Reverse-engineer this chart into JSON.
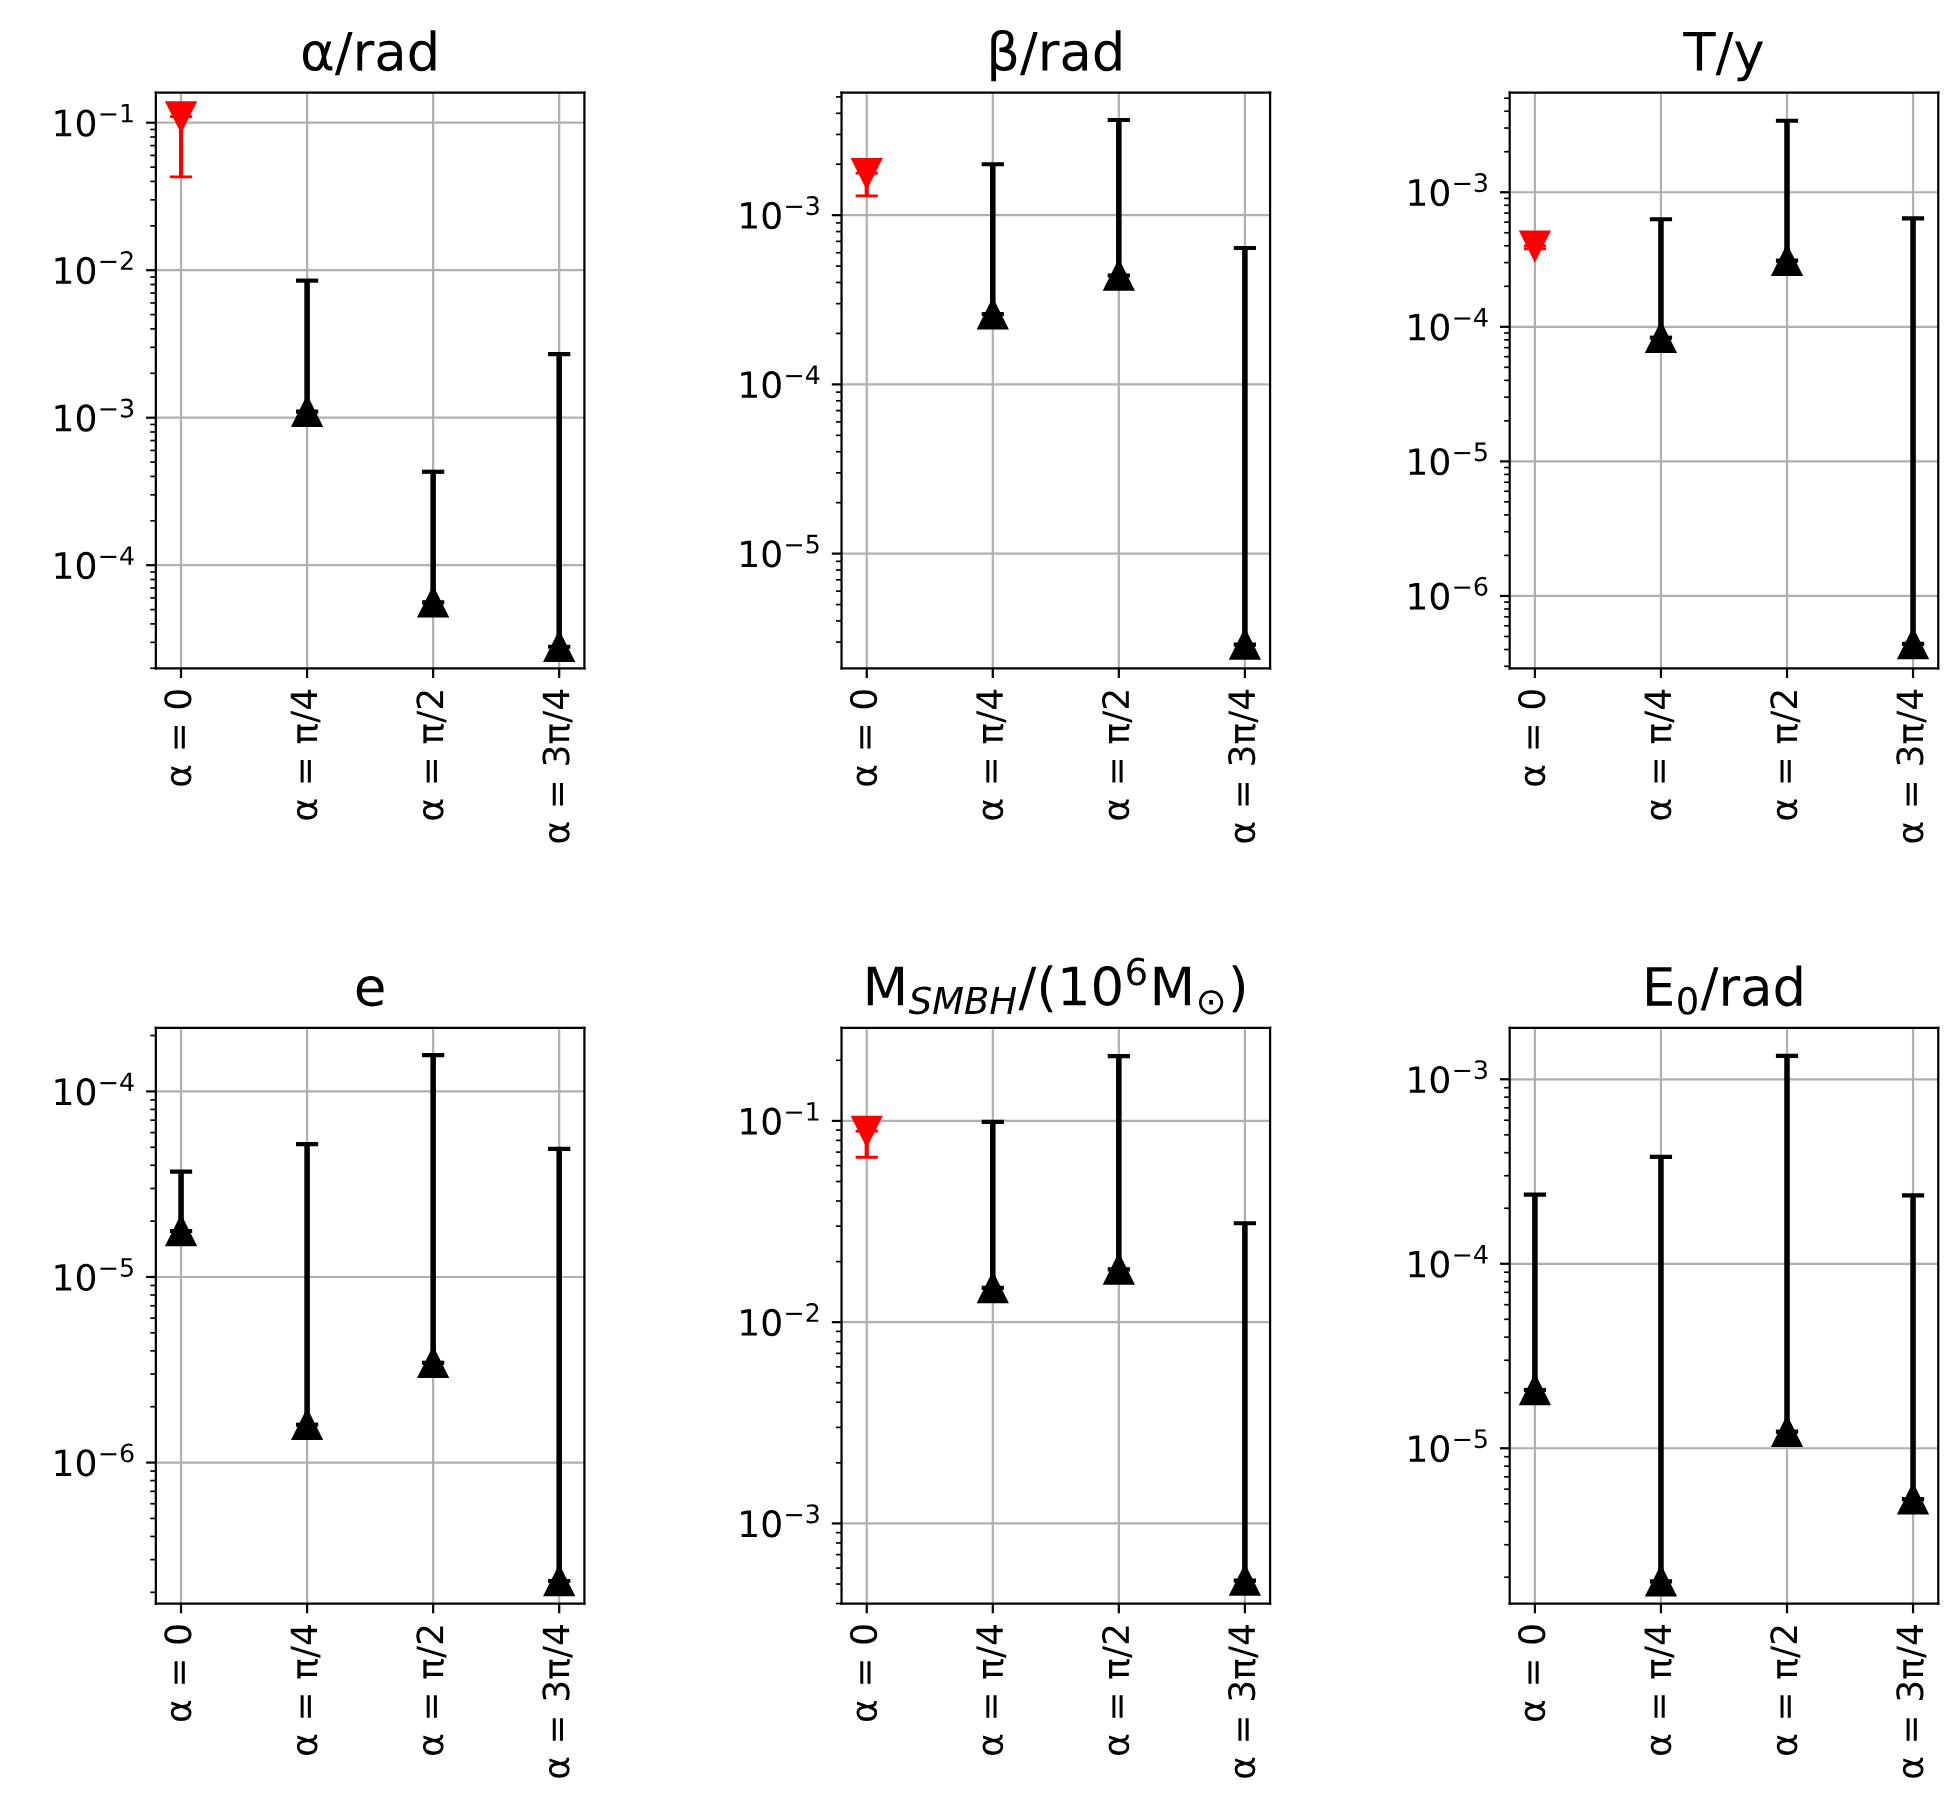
{
  "chart_data": [
    {
      "type": "scatter",
      "title": "α/rad",
      "categories": [
        "α = 0",
        "α = π/4",
        "α = π/2",
        "α = 3π/4"
      ],
      "log": true,
      "grid": true,
      "ylim": [
        2e-05,
        0.16
      ],
      "yticks": [
        {
          "value": 0.0001,
          "label": "10$^{−4}$"
        },
        {
          "value": 0.001,
          "label": "10$^{−3}$"
        },
        {
          "value": 0.01,
          "label": "10$^{−2}$"
        },
        {
          "value": 0.1,
          "label": "10$^{−1}$"
        }
      ],
      "series": [
        {
          "color": "#ff0000",
          "marker": "triangle_down",
          "values": [
            0.11,
            null,
            null,
            null
          ],
          "errors": [
            [
              0.043,
              0.11
            ],
            null,
            null,
            null
          ]
        },
        {
          "color": "#000000",
          "marker": "triangle",
          "values": [
            null,
            0.0011,
            5.6e-05,
            2.8e-05
          ],
          "errors": [
            null,
            [
              0.0011,
              0.0085
            ],
            [
              5.6e-05,
              0.00043
            ],
            [
              2.8e-05,
              0.0027
            ]
          ]
        }
      ]
    },
    {
      "type": "scatter",
      "title": "β/rad",
      "categories": [
        "α = 0",
        "α = π/4",
        "α = π/2",
        "α = 3π/4"
      ],
      "log": true,
      "grid": true,
      "ylim": [
        2.1e-06,
        0.0053
      ],
      "yticks": [
        {
          "value": 1e-05,
          "label": "10$^{−5}$"
        },
        {
          "value": 0.0001,
          "label": "10$^{−4}$"
        },
        {
          "value": 0.001,
          "label": "10$^{−3}$"
        }
      ],
      "series": [
        {
          "color": "#ff0000",
          "marker": "triangle_down",
          "values": [
            0.00177,
            null,
            null,
            null
          ],
          "errors": [
            [
              0.0013,
              0.00177
            ],
            null,
            null,
            null
          ]
        },
        {
          "color": "#000000",
          "marker": "triangle",
          "values": [
            null,
            0.00026,
            0.00044,
            2.9e-06
          ],
          "errors": [
            null,
            [
              0.00026,
              0.002
            ],
            [
              0.00044,
              0.00365
            ],
            [
              2.9e-06,
              0.00064
            ]
          ]
        }
      ]
    },
    {
      "type": "scatter",
      "title": "T/y",
      "categories": [
        "α = 0",
        "α = π/4",
        "α = π/2",
        "α = 3π/4"
      ],
      "log": true,
      "grid": true,
      "ylim": [
        2.9e-07,
        0.0055
      ],
      "yticks": [
        {
          "value": 1e-06,
          "label": "10$^{−6}$"
        },
        {
          "value": 1e-05,
          "label": "10$^{−5}$"
        },
        {
          "value": 0.0001,
          "label": "10$^{−4}$"
        },
        {
          "value": 0.001,
          "label": "10$^{−3}$"
        }
      ],
      "series": [
        {
          "color": "#ff0000",
          "marker": "triangle_down",
          "values": [
            0.0004,
            null,
            null,
            null
          ],
          "errors": [
            [
              0.00038,
              0.0004
            ],
            null,
            null,
            null
          ]
        },
        {
          "color": "#000000",
          "marker": "triangle",
          "values": [
            null,
            8.3e-05,
            0.00031,
            4.4e-07
          ],
          "errors": [
            null,
            [
              8.3e-05,
              0.00063
            ],
            [
              0.00031,
              0.0034
            ],
            [
              4.4e-07,
              0.00064
            ]
          ]
        }
      ]
    },
    {
      "type": "scatter",
      "title": "e",
      "categories": [
        "α = 0",
        "α = π/4",
        "α = π/2",
        "α = 3π/4"
      ],
      "log": true,
      "grid": true,
      "ylim": [
        1.74e-07,
        0.00022
      ],
      "yticks": [
        {
          "value": 1e-06,
          "label": "10$^{−6}$"
        },
        {
          "value": 1e-05,
          "label": "10$^{−5}$"
        },
        {
          "value": 0.0001,
          "label": "10$^{−4}$"
        }
      ],
      "series": [
        {
          "color": "#000000",
          "marker": "triangle",
          "values": [
            1.77e-05,
            1.6e-06,
            3.45e-06,
            2.3e-07
          ],
          "errors": [
            [
              1.77e-05,
              3.7e-05
            ],
            [
              1.6e-06,
              5.2e-05
            ],
            [
              3.45e-06,
              0.000157
            ],
            [
              2.3e-07,
              4.9e-05
            ]
          ]
        }
      ]
    },
    {
      "type": "scatter",
      "title": "M$_{SMBH}$/(10$^{6}$M$_{⊙}$)",
      "categories": [
        "α = 0",
        "α = π/4",
        "α = π/2",
        "α = 3π/4"
      ],
      "log": true,
      "grid": true,
      "ylim": [
        0.0004,
        0.29
      ],
      "yticks": [
        {
          "value": 0.001,
          "label": "10$^{−3}$"
        },
        {
          "value": 0.01,
          "label": "10$^{−2}$"
        },
        {
          "value": 0.1,
          "label": "10$^{−1}$"
        }
      ],
      "series": [
        {
          "color": "#ff0000",
          "marker": "triangle_down",
          "values": [
            0.089,
            null,
            null,
            null
          ],
          "errors": [
            [
              0.066,
              0.089
            ],
            null,
            null,
            null
          ]
        },
        {
          "color": "#000000",
          "marker": "triangle",
          "values": [
            null,
            0.0148,
            0.0183,
            0.00052
          ],
          "errors": [
            null,
            [
              0.0148,
              0.099
            ],
            [
              0.0183,
              0.21
            ],
            [
              0.00052,
              0.031
            ]
          ]
        }
      ]
    },
    {
      "type": "scatter",
      "title": "E$_{0}$/rad",
      "categories": [
        "α = 0",
        "α = π/4",
        "α = π/2",
        "α = 3π/4"
      ],
      "log": true,
      "grid": true,
      "ylim": [
        1.44e-06,
        0.0019
      ],
      "yticks": [
        {
          "value": 1e-05,
          "label": "10$^{−5}$"
        },
        {
          "value": 0.0001,
          "label": "10$^{−4}$"
        },
        {
          "value": 0.001,
          "label": "10$^{−3}$"
        }
      ],
      "series": [
        {
          "color": "#000000",
          "marker": "triangle",
          "values": [
            2.07e-05,
            1.9e-06,
            1.23e-05,
            5.3e-06
          ],
          "errors": [
            [
              2.07e-05,
              0.000237
            ],
            [
              1.9e-06,
              0.00038
            ],
            [
              1.23e-05,
              0.00134
            ],
            [
              5.3e-06,
              0.000235
            ]
          ]
        }
      ]
    }
  ]
}
